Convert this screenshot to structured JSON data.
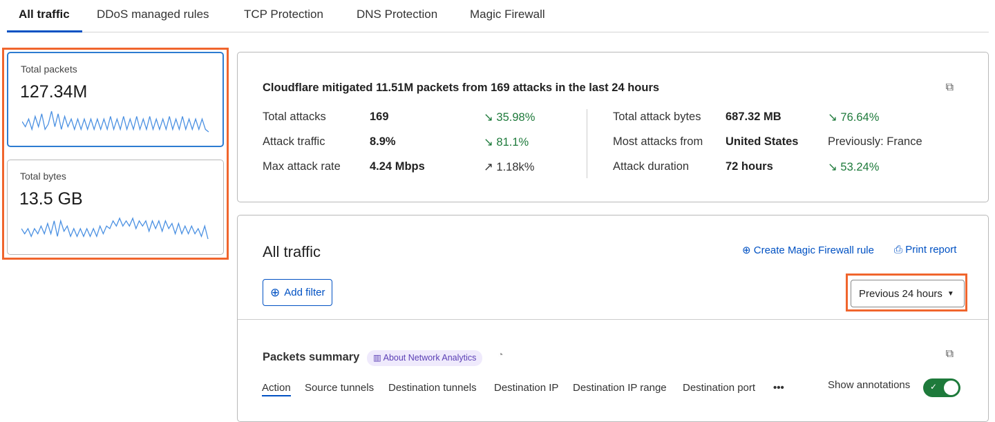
{
  "tabs": [
    {
      "label": "All traffic",
      "active": true
    },
    {
      "label": "DDoS managed rules"
    },
    {
      "label": "TCP Protection"
    },
    {
      "label": "DNS Protection"
    },
    {
      "label": "Magic Firewall"
    }
  ],
  "metrics": [
    {
      "label": "Total packets",
      "value": "127.34M",
      "spark": [
        4,
        2,
        5,
        1,
        6,
        2,
        7,
        1,
        3,
        8,
        2,
        7,
        1,
        6,
        2,
        5,
        1,
        5,
        1,
        5,
        1,
        5,
        1,
        5,
        1,
        5,
        1,
        6,
        1,
        5,
        1,
        6,
        1,
        5,
        1,
        6,
        1,
        5,
        1,
        6,
        1,
        5,
        1,
        5,
        1,
        6,
        1,
        5,
        1,
        6,
        1,
        5,
        1,
        5,
        1,
        5,
        1,
        0
      ]
    },
    {
      "label": "Total bytes",
      "value": "13.5 GB",
      "spark": [
        4,
        2,
        4,
        1,
        4,
        2,
        5,
        2,
        6,
        2,
        7,
        1,
        7,
        3,
        5,
        1,
        4,
        1,
        4,
        1,
        4,
        1,
        4,
        1,
        5,
        2,
        5,
        4,
        7,
        5,
        8,
        5,
        7,
        5,
        8,
        4,
        7,
        5,
        7,
        3,
        7,
        4,
        7,
        3,
        7,
        4,
        6,
        2,
        6,
        2,
        5,
        2,
        5,
        2,
        4,
        1,
        5,
        0
      ]
    }
  ],
  "summary": {
    "headline": "Cloudflare mitigated 11.51M packets from 169 attacks in the last 24 hours",
    "left": [
      {
        "label": "Total attacks",
        "value": "169",
        "change": "35.98%",
        "dir": "down"
      },
      {
        "label": "Attack traffic",
        "value": "8.9%",
        "change": "81.1%",
        "dir": "down"
      },
      {
        "label": "Max attack rate",
        "value": "4.24 Mbps",
        "change": "1.18k%",
        "dir": "up"
      }
    ],
    "right": [
      {
        "label": "Total attack bytes",
        "value": "687.32 MB",
        "change": "76.64%",
        "dir": "down"
      },
      {
        "label": "Most attacks from",
        "value": "United States",
        "change": "Previously: France",
        "dir": "none"
      },
      {
        "label": "Attack duration",
        "value": "72 hours",
        "change": "53.24%",
        "dir": "down"
      }
    ]
  },
  "traffic": {
    "title": "All traffic",
    "create_rule": "Create Magic Firewall rule",
    "print": "Print report",
    "add_filter": "Add filter",
    "time_range": "Previous 24 hours"
  },
  "packets": {
    "title": "Packets summary",
    "about": "About Network Analytics",
    "tabs": [
      "Action",
      "Source tunnels",
      "Destination tunnels",
      "Destination IP",
      "Destination IP range",
      "Destination port"
    ],
    "more": "•••",
    "annotations_label": "Show annotations",
    "annotations_on": true
  },
  "colors": {
    "accent": "#0051c3",
    "highlight": "#f0652d",
    "positive": "#1e7a3b",
    "toggle": "#1e7a3b"
  }
}
